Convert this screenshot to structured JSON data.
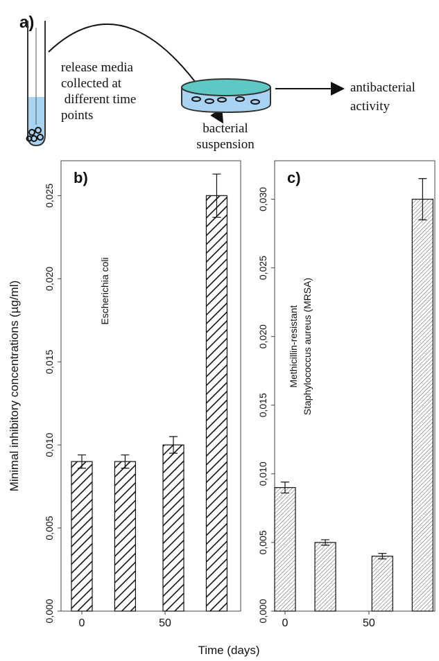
{
  "diagram": {
    "label": "a)",
    "step1": [
      "release media",
      "collected at",
      " different time",
      "points"
    ],
    "step2": [
      "bacterial",
      "suspension"
    ],
    "step3": [
      "antibacterial",
      "activity"
    ]
  },
  "chart_data": [
    {
      "type": "bar",
      "panel": "b)",
      "annotation": [
        "Escherichia coli"
      ],
      "ylabel": "Minimal inhibitory concentrations (µg/ml)",
      "xlabel": "Time (days)",
      "x": [
        0,
        26,
        55,
        81
      ],
      "series": [
        {
          "values": [
            0.009,
            0.009,
            0.01,
            0.025
          ],
          "errors": [
            0.0004,
            0.0004,
            0.0005,
            0.0013
          ],
          "pattern": "thick"
        }
      ],
      "xlim": [
        -12.5,
        95.4
      ],
      "xticks": [
        0,
        50
      ],
      "ylim": [
        0,
        0.0271
      ],
      "yticks": [
        {
          "value": 0,
          "label": "0,000"
        },
        {
          "value": 0.005,
          "label": "0,005"
        },
        {
          "value": 0.01,
          "label": "0,010"
        },
        {
          "value": 0.015,
          "label": "0,015"
        },
        {
          "value": 0.02,
          "label": "0,020"
        },
        {
          "value": 0.025,
          "label": "0,025"
        }
      ]
    },
    {
      "type": "bar",
      "panel": "c)",
      "annotation": [
        "Methicillin-resistant",
        "Staphylococcus aureus (MRSA)"
      ],
      "x": [
        0,
        24,
        58,
        82
      ],
      "series": [
        {
          "values": [
            0.009,
            0.005,
            0.004,
            0.03
          ],
          "errors": [
            0.0004,
            0.0002,
            0.0002,
            0.0015
          ],
          "pattern": "fine"
        }
      ],
      "xlim": [
        -6.2,
        89.3
      ],
      "xticks": [
        0,
        50
      ],
      "ylim": [
        0,
        0.0328
      ],
      "yticks": [
        {
          "value": 0,
          "label": "0,000"
        },
        {
          "value": 0.005,
          "label": "0,005"
        },
        {
          "value": 0.01,
          "label": "0,010"
        },
        {
          "value": 0.015,
          "label": "0,015"
        },
        {
          "value": 0.02,
          "label": "0,020"
        },
        {
          "value": 0.025,
          "label": "0,025"
        },
        {
          "value": 0.03,
          "label": "0,030"
        }
      ]
    }
  ]
}
